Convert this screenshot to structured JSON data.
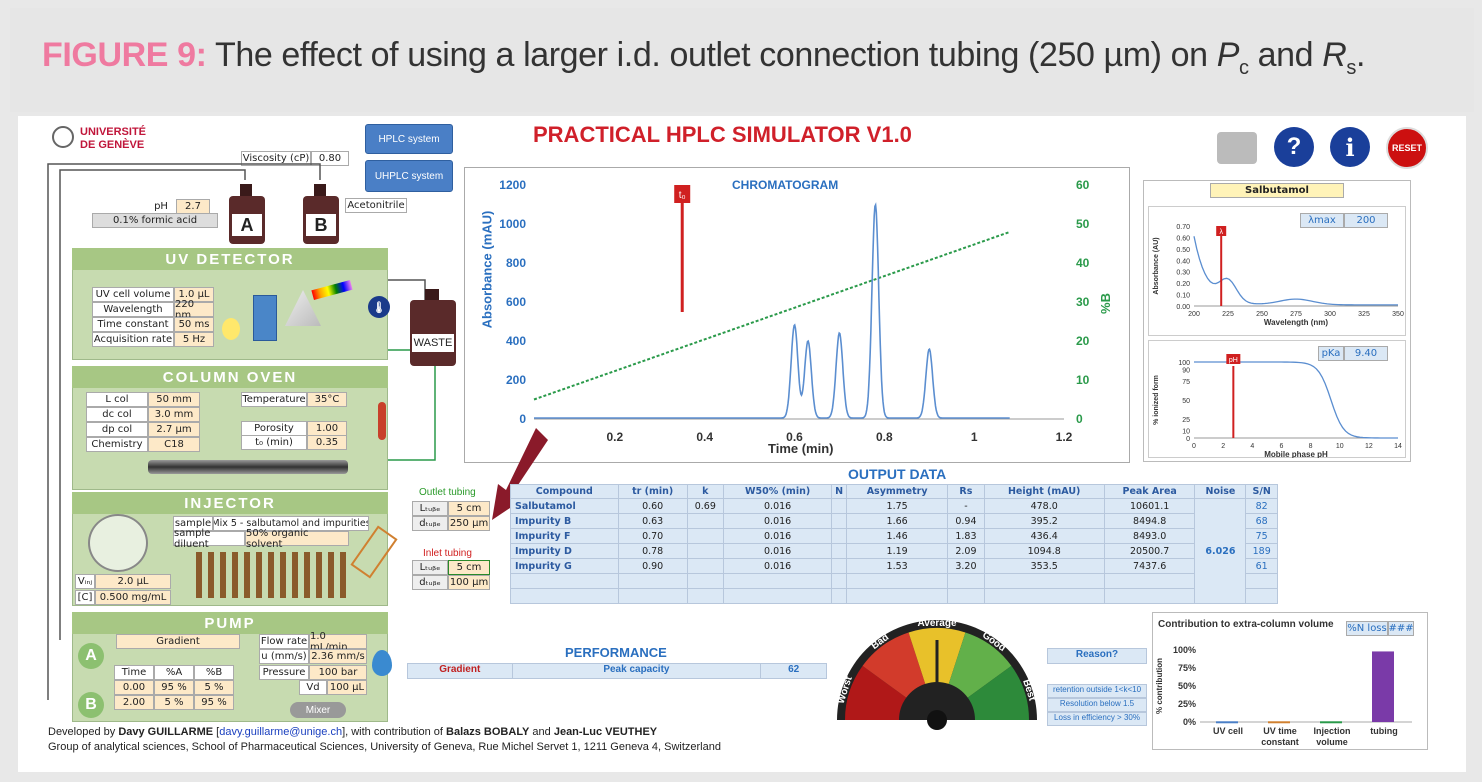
{
  "figure": {
    "label": "FIGURE 9:",
    "caption": "The effect of using a larger i.d. outlet connection tubing (250 µm) on ",
    "pc_main": "P",
    "pc_sub": "c",
    "and": " and ",
    "rs_main": "R",
    "rs_sub": "s",
    "end": "."
  },
  "app": {
    "title": "PRACTICAL HPLC SIMULATOR V1.0",
    "university_line1": "UNIVERSITÉ",
    "university_line2": "DE GENÈVE"
  },
  "buttons": {
    "hplc": "HPLC system",
    "uhplc": "UHPLC system",
    "reset": "RESET",
    "help": "?",
    "info": "i"
  },
  "viscosity": {
    "label": "Viscosity (cP)",
    "value": "0.80"
  },
  "solvents": {
    "ph_label": "pH",
    "ph_value": "2.7",
    "a_desc": "0.1% formic acid",
    "a_label": "A",
    "b_label": "B",
    "b_desc": "Acetonitrile",
    "waste": "WASTE"
  },
  "uv": {
    "title": "UV DETECTOR",
    "rows": [
      [
        "UV cell volume",
        "1.0 µL"
      ],
      [
        "Wavelength",
        "220 nm"
      ],
      [
        "Time constant",
        "50 ms"
      ],
      [
        "Acquisition rate",
        "5 Hz"
      ]
    ]
  },
  "oven": {
    "title": "COLUMN OVEN",
    "left": [
      [
        "L col",
        "50 mm"
      ],
      [
        "dc col",
        "3.0 mm"
      ],
      [
        "dp col",
        "2.7 µm"
      ],
      [
        "Chemistry",
        "C18"
      ]
    ],
    "temp_label": "Temperature",
    "temp_value": "35°C",
    "por_label": "Porosity",
    "por_value": "1.00",
    "t0_label": "t₀ (min)",
    "t0_value": "0.35"
  },
  "injector": {
    "title": "INJECTOR",
    "sample_label": "sample",
    "sample_value": "Mix 5 - salbutamol and impurities",
    "diluent_label": "sample diluent",
    "diluent_value": "50% organic solvent",
    "vinj_label": "Vᵢₙⱼ",
    "vinj_value": "2.0 µL",
    "c_label": "[C]",
    "c_value": "0.500 mg/mL"
  },
  "pump": {
    "title": "PUMP",
    "mode": "Gradient",
    "flow_label": "Flow rate",
    "flow_value": "1.0 mL/min",
    "u_label": "u (mm/s)",
    "u_value": "2.36 mm/s",
    "p_label": "Pressure",
    "p_value": "100 bar",
    "vd_label": "Vd",
    "vd_value": "100 µL",
    "grad_head": [
      "Time",
      "%A",
      "%B"
    ],
    "grad_rows": [
      [
        "0.00",
        "95 %",
        "5 %"
      ],
      [
        "2.00",
        "5 %",
        "95 %"
      ]
    ],
    "a": "A",
    "b": "B",
    "mixer": "Mixer"
  },
  "tubing": {
    "outlet_title": "Outlet tubing",
    "inlet_title": "Inlet tubing",
    "l_label": "Lₜᵤᵦₑ",
    "d_label": "dₜᵤᵦₑ",
    "outlet_l": "5 cm",
    "outlet_d": "250 µm",
    "inlet_l": "5 cm",
    "inlet_d": "100 µm"
  },
  "chromatogram": {
    "title": "CHROMATOGRAM",
    "xlabel": "Time (min)",
    "ylabel": "Absorbance (mAU)",
    "y2label": "%B",
    "t0": "t₀",
    "xticks": [
      "0.2",
      "0.4",
      "0.6",
      "0.8",
      "1",
      "1.2"
    ],
    "yticks": [
      "0",
      "200",
      "400",
      "600",
      "800",
      "1000",
      "1200"
    ],
    "y2ticks": [
      "0",
      "10",
      "20",
      "30",
      "40",
      "50",
      "60"
    ]
  },
  "output": {
    "title": "OUTPUT DATA",
    "headers": [
      "Compound",
      "tr (min)",
      "k",
      "W50% (min)",
      "N",
      "Asymmetry",
      "Rs",
      "Height (mAU)",
      "Peak Area",
      "Noise",
      "S/N"
    ],
    "rows": [
      [
        "Salbutamol",
        "0.60",
        "0.69",
        "0.016",
        "",
        "1.75",
        "-",
        "478.0",
        "10601.1",
        "82"
      ],
      [
        "Impurity B",
        "0.63",
        "",
        "0.016",
        "",
        "1.66",
        "0.94",
        "395.2",
        "8494.8",
        "68"
      ],
      [
        "Impurity F",
        "0.70",
        "",
        "0.016",
        "",
        "1.46",
        "1.83",
        "436.4",
        "8493.0",
        "75"
      ],
      [
        "Impurity D",
        "0.78",
        "",
        "0.016",
        "",
        "1.19",
        "2.09",
        "1094.8",
        "20500.7",
        "189"
      ],
      [
        "Impurity G",
        "0.90",
        "",
        "0.016",
        "",
        "1.53",
        "3.20",
        "353.5",
        "7437.6",
        "61"
      ]
    ],
    "noise": "6.026"
  },
  "performance": {
    "title": "PERFORMANCE",
    "mode": "Gradient",
    "metric": "Peak capacity",
    "value": "62"
  },
  "gauge": {
    "worst": "Worst",
    "bad": "Bad",
    "average": "Average",
    "good": "Good",
    "best": "Best"
  },
  "reason": {
    "title": "Reason?",
    "items": [
      "retention outside 1<k<10",
      "Resolution below 1.5",
      "Loss in efficiency > 30%"
    ]
  },
  "spectrum": {
    "compound": "Salbutamol",
    "lmax_label": "λmax",
    "lmax_value": "200",
    "xlabel": "Wavelength (nm)",
    "ylabel": "Absorbance (AU)",
    "lambda": "λ",
    "xticks": [
      "200",
      "225",
      "250",
      "275",
      "300",
      "325",
      "350"
    ],
    "yticks": [
      "0.00",
      "0.10",
      "0.20",
      "0.30",
      "0.40",
      "0.50",
      "0.60",
      "0.70"
    ]
  },
  "ionization": {
    "pka_label": "pKa",
    "pka_value": "9.40",
    "xlabel": "Mobile phase pH",
    "ylabel": "% ionized form",
    "ph": "pH",
    "xticks": [
      "0",
      "2",
      "4",
      "6",
      "8",
      "10",
      "12",
      "14"
    ],
    "yticks": [
      "0",
      "10",
      "25",
      "50",
      "75",
      "90",
      "100"
    ]
  },
  "extra_col": {
    "title": "Contribution to extra-column volume",
    "nloss": "%N loss",
    "nloss_value": "###",
    "ylabel": "% contribution",
    "yticks": [
      "0%",
      "25%",
      "50%",
      "75%",
      "100%"
    ],
    "cats": [
      [
        "UV cell",
        ""
      ],
      [
        "UV time",
        "constant"
      ],
      [
        "Injection",
        "volume"
      ],
      [
        "tubing",
        ""
      ]
    ]
  },
  "footer": {
    "line1a": "Developed by ",
    "name": "Davy GUILLARME",
    "email": "davy.guillarme@unige.ch",
    "line1b": ", with contribution of ",
    "c1": "Balazs BOBALY",
    "and": " and ",
    "c2": "Jean-Luc VEUTHEY",
    "line2": "Group of analytical sciences, School of Pharmaceutical Sciences, University of Geneva, Rue Michel Servet 1, 1211 Geneva 4, Switzerland"
  },
  "chart_data": {
    "type": "line",
    "title": "CHROMATOGRAM",
    "xlabel": "Time (min)",
    "ylabel": "Absorbance (mAU)",
    "ylim": [
      0,
      1200
    ],
    "xlim": [
      0,
      1.2
    ],
    "y2label": "%B",
    "y2lim": [
      0,
      60
    ],
    "series": [
      {
        "peaks": [
          [
            0.6,
            478.0
          ],
          [
            0.63,
            395.2
          ],
          [
            0.7,
            436.4
          ],
          [
            0.78,
            1094.8
          ],
          [
            0.9,
            353.5
          ]
        ]
      },
      {
        "x": [
          0,
          1.08
        ],
        "y": [
          5,
          48
        ]
      }
    ],
    "t0": 0.35
  }
}
